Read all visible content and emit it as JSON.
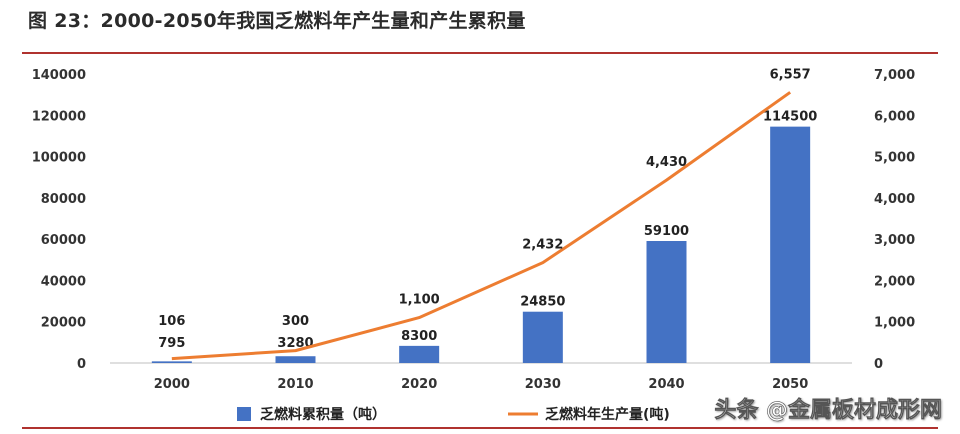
{
  "figure_title": "图 23：2000-2050年我国乏燃料年产生量和产生累积量",
  "watermark": "头条 @金属板材成形网",
  "chart_data": {
    "type": "bar+line",
    "categories": [
      "2000",
      "2010",
      "2020",
      "2030",
      "2040",
      "2050"
    ],
    "series": [
      {
        "name": "乏燃料累积量（吨）",
        "type": "bar",
        "axis": "left",
        "values": [
          795,
          3280,
          8300,
          24850,
          59100,
          114500
        ],
        "labels": [
          "795",
          "3280",
          "8300",
          "24850",
          "59100",
          "114500"
        ],
        "color": "#4472C4"
      },
      {
        "name": "乏燃料年生产量(吨)",
        "type": "line",
        "axis": "right",
        "values": [
          106,
          300,
          1100,
          2432,
          4430,
          6557
        ],
        "labels": [
          "106",
          "300",
          "1,100",
          "2,432",
          "4,430",
          "6,557"
        ],
        "color": "#ED7D31"
      }
    ],
    "y_left": {
      "lim": [
        0,
        140000
      ],
      "ticks": [
        0,
        20000,
        40000,
        60000,
        80000,
        100000,
        120000,
        140000
      ],
      "tick_labels": [
        "0",
        "20000",
        "40000",
        "60000",
        "80000",
        "100000",
        "120000",
        "140000"
      ]
    },
    "y_right": {
      "lim": [
        0,
        7000
      ],
      "ticks": [
        0,
        1000,
        2000,
        3000,
        4000,
        5000,
        6000,
        7000
      ],
      "tick_labels": [
        "0",
        "1,000",
        "2,000",
        "3,000",
        "4,000",
        "5,000",
        "6,000",
        "7,000"
      ]
    },
    "grid": false,
    "legend_position": "bottom"
  }
}
